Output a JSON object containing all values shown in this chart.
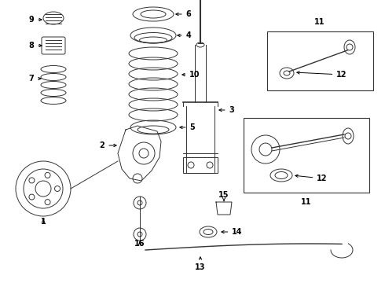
{
  "bg_color": "#ffffff",
  "line_color": "#333333",
  "fig_width": 4.9,
  "fig_height": 3.6,
  "dpi": 100,
  "label_fontsize": 7,
  "label_fontweight": "bold"
}
